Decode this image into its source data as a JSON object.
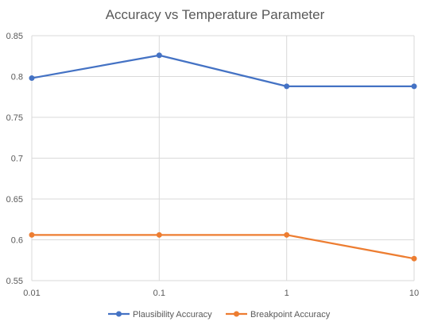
{
  "chart_data": {
    "type": "line",
    "title": "Accuracy vs Temperature Parameter",
    "xlabel": "",
    "ylabel": "",
    "categories": [
      "0.01",
      "0.1",
      "1",
      "10"
    ],
    "ylim": [
      0.55,
      0.85
    ],
    "yticks": [
      0.55,
      0.6,
      0.65,
      0.7,
      0.75,
      0.8,
      0.85
    ],
    "ytick_labels": [
      "0.55",
      "0.6",
      "0.65",
      "0.7",
      "0.75",
      "0.8",
      "0.85"
    ],
    "grid": true,
    "legend_position": "bottom",
    "series": [
      {
        "name": "Plausibility Accuracy",
        "color": "#4472c4",
        "values": [
          0.798,
          0.826,
          0.788,
          0.788
        ]
      },
      {
        "name": "Breakpoint Accuracy",
        "color": "#ed7d31",
        "values": [
          0.606,
          0.606,
          0.606,
          0.577
        ]
      }
    ]
  }
}
